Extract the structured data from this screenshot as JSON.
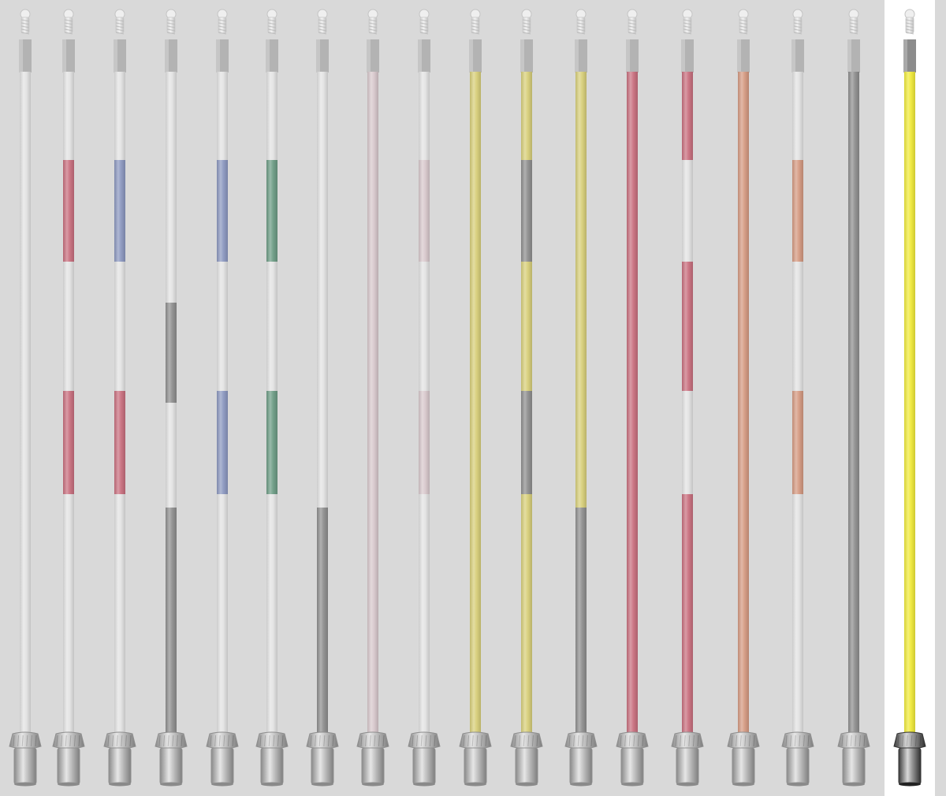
{
  "palette": {
    "white": "#e3e3e3",
    "red": "#c9707f",
    "blue": "#8c98c0",
    "green": "#6d9c85",
    "gray": "#8f8f8f",
    "pink": "#d8c8cc",
    "yellow": "#d8cf7a",
    "orange": "#d59a82",
    "bright_yellow": "#f0ea3a"
  },
  "selected_index": 17,
  "poles": [
    {
      "name": "pole-1",
      "bands": [
        {
          "color": "white",
          "from": 0,
          "to": 843
        }
      ]
    },
    {
      "name": "pole-2",
      "bands": [
        {
          "color": "white",
          "from": 0,
          "to": 112
        },
        {
          "color": "red",
          "from": 112,
          "to": 241
        },
        {
          "color": "white",
          "from": 241,
          "to": 405
        },
        {
          "color": "red",
          "from": 405,
          "to": 536
        },
        {
          "color": "white",
          "from": 536,
          "to": 843
        }
      ]
    },
    {
      "name": "pole-3",
      "bands": [
        {
          "color": "white",
          "from": 0,
          "to": 112
        },
        {
          "color": "blue",
          "from": 112,
          "to": 241
        },
        {
          "color": "white",
          "from": 241,
          "to": 405
        },
        {
          "color": "red",
          "from": 405,
          "to": 536
        },
        {
          "color": "white",
          "from": 536,
          "to": 843
        }
      ]
    },
    {
      "name": "pole-4",
      "bands": [
        {
          "color": "white",
          "from": 0,
          "to": 293
        },
        {
          "color": "gray",
          "from": 293,
          "to": 420
        },
        {
          "color": "white",
          "from": 420,
          "to": 553
        },
        {
          "color": "gray",
          "from": 553,
          "to": 843
        }
      ]
    },
    {
      "name": "pole-5",
      "bands": [
        {
          "color": "white",
          "from": 0,
          "to": 112
        },
        {
          "color": "blue",
          "from": 112,
          "to": 241
        },
        {
          "color": "white",
          "from": 241,
          "to": 405
        },
        {
          "color": "blue",
          "from": 405,
          "to": 536
        },
        {
          "color": "white",
          "from": 536,
          "to": 843
        }
      ]
    },
    {
      "name": "pole-6",
      "bands": [
        {
          "color": "white",
          "from": 0,
          "to": 112
        },
        {
          "color": "green",
          "from": 112,
          "to": 241
        },
        {
          "color": "white",
          "from": 241,
          "to": 405
        },
        {
          "color": "green",
          "from": 405,
          "to": 536
        },
        {
          "color": "white",
          "from": 536,
          "to": 843
        }
      ]
    },
    {
      "name": "pole-7",
      "bands": [
        {
          "color": "white",
          "from": 0,
          "to": 553
        },
        {
          "color": "gray",
          "from": 553,
          "to": 843
        }
      ]
    },
    {
      "name": "pole-8",
      "bands": [
        {
          "color": "pink",
          "from": 0,
          "to": 843
        }
      ]
    },
    {
      "name": "pole-9",
      "bands": [
        {
          "color": "white",
          "from": 0,
          "to": 112
        },
        {
          "color": "pink",
          "from": 112,
          "to": 241
        },
        {
          "color": "white",
          "from": 241,
          "to": 405
        },
        {
          "color": "pink",
          "from": 405,
          "to": 536
        },
        {
          "color": "white",
          "from": 536,
          "to": 843
        }
      ]
    },
    {
      "name": "pole-10",
      "bands": [
        {
          "color": "yellow",
          "from": 0,
          "to": 843
        }
      ]
    },
    {
      "name": "pole-11",
      "bands": [
        {
          "color": "yellow",
          "from": 0,
          "to": 112
        },
        {
          "color": "gray",
          "from": 112,
          "to": 241
        },
        {
          "color": "yellow",
          "from": 241,
          "to": 405
        },
        {
          "color": "gray",
          "from": 405,
          "to": 536
        },
        {
          "color": "yellow",
          "from": 536,
          "to": 843
        }
      ]
    },
    {
      "name": "pole-12",
      "bands": [
        {
          "color": "yellow",
          "from": 0,
          "to": 553
        },
        {
          "color": "gray",
          "from": 553,
          "to": 843
        }
      ]
    },
    {
      "name": "pole-13",
      "bands": [
        {
          "color": "red",
          "from": 0,
          "to": 843
        }
      ]
    },
    {
      "name": "pole-14",
      "bands": [
        {
          "color": "red",
          "from": 0,
          "to": 112
        },
        {
          "color": "white",
          "from": 112,
          "to": 241
        },
        {
          "color": "red",
          "from": 241,
          "to": 405
        },
        {
          "color": "white",
          "from": 405,
          "to": 536
        },
        {
          "color": "red",
          "from": 536,
          "to": 843
        }
      ]
    },
    {
      "name": "pole-15",
      "bands": [
        {
          "color": "orange",
          "from": 0,
          "to": 843
        }
      ]
    },
    {
      "name": "pole-16",
      "bands": [
        {
          "color": "white",
          "from": 0,
          "to": 112
        },
        {
          "color": "orange",
          "from": 112,
          "to": 241
        },
        {
          "color": "white",
          "from": 241,
          "to": 405
        },
        {
          "color": "orange",
          "from": 405,
          "to": 536
        },
        {
          "color": "white",
          "from": 536,
          "to": 843
        }
      ]
    },
    {
      "name": "pole-17",
      "bands": [
        {
          "color": "gray",
          "from": 0,
          "to": 843
        }
      ]
    },
    {
      "name": "pole-18",
      "bands": [
        {
          "color": "bright_yellow",
          "from": 0,
          "to": 843
        }
      ]
    }
  ]
}
